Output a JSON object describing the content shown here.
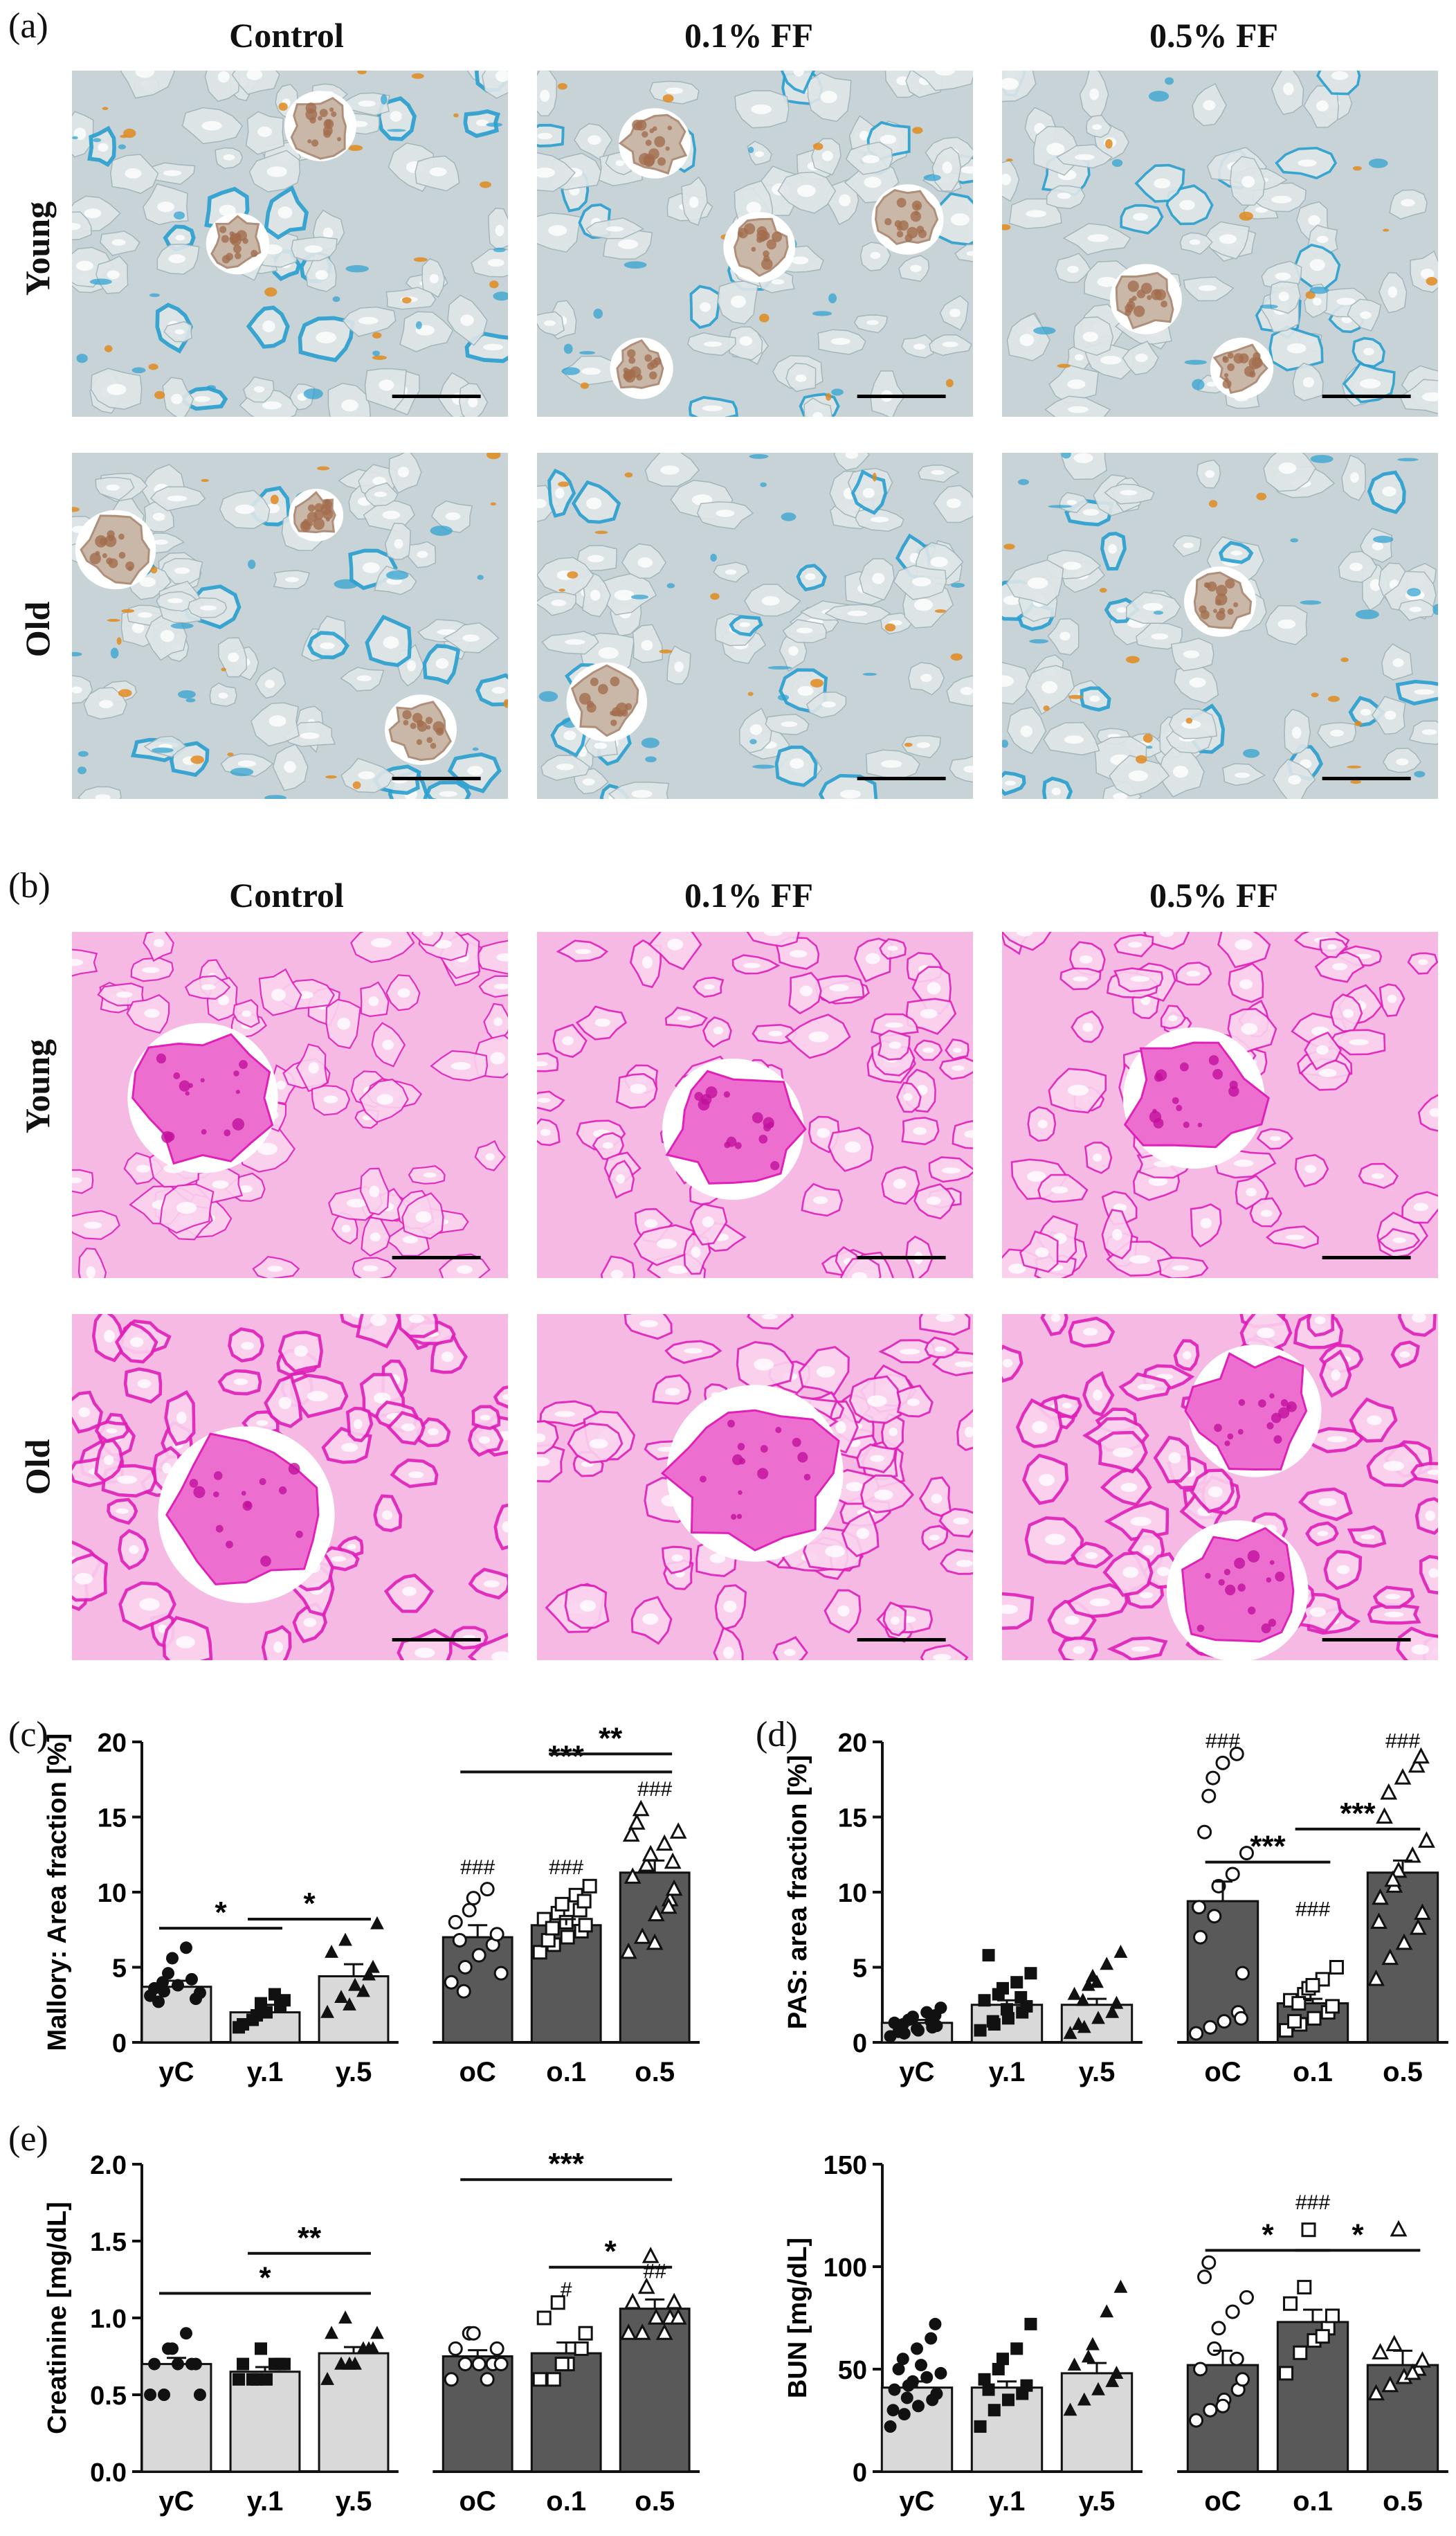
{
  "panels": {
    "a": {
      "label": "(a)",
      "columns": [
        "Control",
        "0.1% FF",
        "0.5% FF"
      ],
      "rows": [
        "Young",
        "Old"
      ]
    },
    "b": {
      "label": "(b)",
      "columns": [
        "Control",
        "0.1% FF",
        "0.5% FF"
      ],
      "rows": [
        "Young",
        "Old"
      ]
    },
    "c": {
      "label": "(c)"
    },
    "d": {
      "label": "(d)"
    },
    "e": {
      "label": "(e)"
    }
  },
  "colors": {
    "young_bar": "#d9d9d9",
    "old_bar": "#595959",
    "mallory_bg": "#c7d3d6",
    "mallory_blue": "#2aa0d0",
    "mallory_orange": "#e08a1e",
    "pas_bg": "#f6b9e4",
    "pas_magenta": "#e020b8"
  },
  "chart_data": [
    {
      "id": "c",
      "type": "bar",
      "ylabel": "Mallory: Area fraction [%]",
      "categories": [
        "yC",
        "y.1",
        "y.5",
        "oC",
        "o.1",
        "o.5"
      ],
      "values": [
        3.7,
        2.0,
        4.4,
        7.0,
        7.8,
        11.3
      ],
      "errors": [
        0.4,
        0.5,
        0.8,
        0.8,
        0.4,
        0.8
      ],
      "ylim": [
        0,
        20
      ],
      "yticks": [
        0,
        5,
        10,
        15,
        20
      ],
      "markers": [
        "filled-circle",
        "filled-square",
        "filled-triangle",
        "open-circle",
        "open-square",
        "open-triangle"
      ],
      "points": [
        [
          3.1,
          3.4,
          3.8,
          4.2,
          2.9,
          3.6,
          4.6,
          5.6,
          6.3,
          3.3,
          2.7,
          4.0
        ],
        [
          1.0,
          1.5,
          2.0,
          2.4,
          2.8,
          1.2,
          1.8,
          2.6,
          3.2
        ],
        [
          2.0,
          3.0,
          3.8,
          4.5,
          5.0,
          6.0,
          6.8,
          2.5,
          3.4,
          7.9
        ],
        [
          4.0,
          5.0,
          5.8,
          6.5,
          7.2,
          8.0,
          8.8,
          9.6,
          10.2,
          4.6,
          6.8,
          3.4
        ],
        [
          6.0,
          6.5,
          7.0,
          7.4,
          7.8,
          8.2,
          8.6,
          9.2,
          9.8,
          10.4,
          6.8,
          7.6,
          8.0,
          8.8,
          9.4
        ],
        [
          6.0,
          7.0,
          8.5,
          9.5,
          10.2,
          11.0,
          11.8,
          12.5,
          13.2,
          14.0,
          14.6,
          15.5,
          6.6,
          9.0,
          12.0,
          13.8
        ]
      ],
      "sig_bars": [
        {
          "from": 0,
          "to": 1,
          "y": 7.6,
          "label": "*"
        },
        {
          "from": 1,
          "to": 2,
          "y": 8.2,
          "label": "*"
        },
        {
          "from": 3,
          "to": 5,
          "y": 18.0,
          "label": "***"
        },
        {
          "from": 4,
          "to": 5,
          "y": 19.2,
          "label": "**"
        }
      ],
      "group_marks": [
        {
          "index": 3,
          "y": 11.2,
          "label": "###"
        },
        {
          "index": 4,
          "y": 11.2,
          "label": "###"
        },
        {
          "index": 5,
          "y": 16.4,
          "label": "###"
        }
      ]
    },
    {
      "id": "d",
      "type": "bar",
      "ylabel": "PAS: area fraction [%]",
      "categories": [
        "yC",
        "y.1",
        "y.5",
        "oC",
        "o.1",
        "o.5"
      ],
      "values": [
        1.3,
        2.5,
        2.5,
        9.4,
        2.6,
        11.3
      ],
      "errors": [
        0.2,
        0.3,
        0.4,
        1.3,
        0.3,
        0.8
      ],
      "ylim": [
        0,
        20
      ],
      "yticks": [
        0,
        5,
        10,
        15,
        20
      ],
      "markers": [
        "filled-circle",
        "filled-square",
        "filled-triangle",
        "open-circle",
        "open-square",
        "open-triangle"
      ],
      "points": [
        [
          0.4,
          0.6,
          0.8,
          1.0,
          1.1,
          1.3,
          1.5,
          1.7,
          2.0,
          2.3,
          0.7,
          1.2,
          0.9,
          1.4,
          1.8
        ],
        [
          0.8,
          1.2,
          1.6,
          2.0,
          2.4,
          2.8,
          3.2,
          3.6,
          4.0,
          4.6,
          5.8,
          1.4,
          2.2,
          3.0
        ],
        [
          0.6,
          1.0,
          1.6,
          2.0,
          2.6,
          3.2,
          3.8,
          4.4,
          5.2,
          6.0,
          1.2,
          2.8,
          4.0
        ],
        [
          0.6,
          1.0,
          1.4,
          2.0,
          4.6,
          7.0,
          8.4,
          10.4,
          11.2,
          12.6,
          14.0,
          16.4,
          18.6,
          19.2,
          1.6,
          9.0,
          17.6
        ],
        [
          0.8,
          1.2,
          1.6,
          2.0,
          2.4,
          2.8,
          3.2,
          3.6,
          4.2,
          5.0,
          1.4,
          2.6,
          3.8
        ],
        [
          4.2,
          5.6,
          6.6,
          7.6,
          8.6,
          9.6,
          10.4,
          11.4,
          12.4,
          13.4,
          15.0,
          16.6,
          17.6,
          18.4,
          19.0,
          8.0,
          10.8
        ]
      ],
      "sig_bars": [
        {
          "from": 3,
          "to": 4,
          "y": 12.0,
          "label": "***"
        },
        {
          "from": 4,
          "to": 5,
          "y": 14.2,
          "label": "***"
        }
      ],
      "group_marks": [
        {
          "index": 3,
          "y": 19.6,
          "label": "###"
        },
        {
          "index": 4,
          "y": 8.4,
          "label": "###"
        },
        {
          "index": 5,
          "y": 19.6,
          "label": "###"
        }
      ]
    },
    {
      "id": "e1",
      "type": "bar",
      "ylabel": "Creatinine [mg/dL]",
      "categories": [
        "yC",
        "y.1",
        "y.5",
        "oC",
        "o.1",
        "o.5"
      ],
      "values": [
        0.7,
        0.65,
        0.77,
        0.75,
        0.77,
        1.06
      ],
      "errors": [
        0.04,
        0.03,
        0.04,
        0.04,
        0.07,
        0.06
      ],
      "ylim": [
        0,
        2.0
      ],
      "yticks": [
        0.0,
        0.5,
        1.0,
        1.5,
        2.0
      ],
      "markers": [
        "filled-circle",
        "filled-square",
        "filled-triangle",
        "open-circle",
        "open-square",
        "open-triangle"
      ],
      "points": [
        [
          0.5,
          0.5,
          0.7,
          0.7,
          0.7,
          0.7,
          0.8,
          0.8,
          0.9,
          0.5
        ],
        [
          0.6,
          0.6,
          0.6,
          0.7,
          0.7,
          0.7,
          0.6,
          0.8,
          0.7
        ],
        [
          0.6,
          0.7,
          0.7,
          0.8,
          0.8,
          0.9,
          1.0,
          0.7,
          0.8,
          0.9
        ],
        [
          0.6,
          0.7,
          0.7,
          0.7,
          0.8,
          0.8,
          0.9,
          0.9,
          0.6,
          0.7
        ],
        [
          0.6,
          0.6,
          0.7,
          0.8,
          0.9,
          1.0,
          1.1,
          0.7
        ],
        [
          0.9,
          0.9,
          1.0,
          1.0,
          1.1,
          1.1,
          1.2,
          1.4,
          0.9,
          1.0
        ]
      ],
      "sig_bars": [
        {
          "from": 0,
          "to": 2,
          "y": 1.16,
          "label": "*"
        },
        {
          "from": 1,
          "to": 2,
          "y": 1.42,
          "label": "**"
        },
        {
          "from": 3,
          "to": 5,
          "y": 1.9,
          "label": "***"
        },
        {
          "from": 4,
          "to": 5,
          "y": 1.33,
          "label": "*"
        }
      ],
      "group_marks": [
        {
          "index": 4,
          "y": 1.14,
          "label": "#"
        },
        {
          "index": 5,
          "y": 1.26,
          "label": "##"
        }
      ]
    },
    {
      "id": "e2",
      "type": "bar",
      "ylabel": "BUN [mg/dL]",
      "categories": [
        "yC",
        "y.1",
        "y.5",
        "oC",
        "o.1",
        "o.5"
      ],
      "values": [
        41,
        41,
        48,
        52,
        73,
        52
      ],
      "errors": [
        3,
        3,
        5,
        7,
        6,
        7
      ],
      "ylim": [
        0,
        150
      ],
      "yticks": [
        0,
        50,
        100,
        150
      ],
      "markers": [
        "filled-circle",
        "filled-square",
        "filled-triangle",
        "open-circle",
        "open-square",
        "open-triangle"
      ],
      "points": [
        [
          22,
          28,
          32,
          35,
          38,
          40,
          42,
          44,
          46,
          48,
          50,
          55,
          60,
          65,
          72,
          30,
          36,
          52
        ],
        [
          22,
          30,
          35,
          38,
          42,
          45,
          50,
          55,
          60,
          72,
          40
        ],
        [
          30,
          35,
          40,
          44,
          48,
          52,
          56,
          62,
          78,
          90
        ],
        [
          25,
          30,
          35,
          40,
          45,
          50,
          60,
          70,
          78,
          85,
          95,
          102,
          32,
          55
        ],
        [
          48,
          58,
          64,
          70,
          76,
          82,
          90,
          118,
          66
        ],
        [
          38,
          42,
          46,
          50,
          54,
          58,
          62,
          118,
          48
        ]
      ],
      "sig_bars": [
        {
          "from": 3,
          "to": 4,
          "y": 108,
          "label": "*"
        },
        {
          "from": 4,
          "to": 5,
          "y": 108,
          "label": "*"
        }
      ],
      "group_marks": [
        {
          "index": 4,
          "y": 128,
          "label": "###"
        }
      ]
    }
  ]
}
